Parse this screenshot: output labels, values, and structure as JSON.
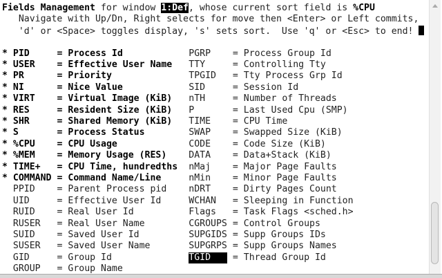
{
  "header": {
    "title": "Fields Management",
    "for_window": " for window ",
    "window_name": "1:Def",
    "sort_text": ", whose current sort field is ",
    "sort_field": "%CPU",
    "help_line1": "   Navigate with Up/Dn, Right selects for move then <Enter> or Left commits,",
    "help_line2": "   'd' or <Space> toggles display, 's' sets sort.  Use 'q' or <Esc> to end! "
  },
  "left_fields": [
    {
      "marker": "*",
      "name": "PID",
      "desc": "= Process Id",
      "displayed": true
    },
    {
      "marker": "*",
      "name": "USER",
      "desc": "= Effective User Name",
      "displayed": true
    },
    {
      "marker": "*",
      "name": "PR",
      "desc": "= Priority",
      "displayed": true
    },
    {
      "marker": "*",
      "name": "NI",
      "desc": "= Nice Value",
      "displayed": true
    },
    {
      "marker": "*",
      "name": "VIRT",
      "desc": "= Virtual Image (KiB)",
      "displayed": true
    },
    {
      "marker": "*",
      "name": "RES",
      "desc": "= Resident Size (KiB)",
      "displayed": true
    },
    {
      "marker": "*",
      "name": "SHR",
      "desc": "= Shared Memory (KiB)",
      "displayed": true
    },
    {
      "marker": "*",
      "name": "S",
      "desc": "= Process Status",
      "displayed": true
    },
    {
      "marker": "*",
      "name": "%CPU",
      "desc": "= CPU Usage",
      "displayed": true
    },
    {
      "marker": "*",
      "name": "%MEM",
      "desc": "= Memory Usage (RES)",
      "displayed": true
    },
    {
      "marker": "*",
      "name": "TIME+",
      "desc": "= CPU Time, hundredths",
      "displayed": true
    },
    {
      "marker": "*",
      "name": "COMMAND",
      "desc": "= Command Name/Line",
      "displayed": true
    },
    {
      "marker": "",
      "name": "PPID",
      "desc": "= Parent Process pid",
      "displayed": false
    },
    {
      "marker": "",
      "name": "UID",
      "desc": "= Effective User Id",
      "displayed": false
    },
    {
      "marker": "",
      "name": "RUID",
      "desc": "= Real User Id",
      "displayed": false
    },
    {
      "marker": "",
      "name": "RUSER",
      "desc": "= Real User Name",
      "displayed": false
    },
    {
      "marker": "",
      "name": "SUID",
      "desc": "= Saved User Id",
      "displayed": false
    },
    {
      "marker": "",
      "name": "SUSER",
      "desc": "= Saved User Name",
      "displayed": false
    },
    {
      "marker": "",
      "name": "GID",
      "desc": "= Group Id",
      "displayed": false
    },
    {
      "marker": "",
      "name": "GROUP",
      "desc": "= Group Name",
      "displayed": false
    }
  ],
  "right_fields": [
    {
      "name": "PGRP",
      "desc": "= Process Group Id",
      "selected": false
    },
    {
      "name": "TTY",
      "desc": "= Controlling Tty",
      "selected": false
    },
    {
      "name": "TPGID",
      "desc": "= Tty Process Grp Id",
      "selected": false
    },
    {
      "name": "SID",
      "desc": "= Session Id",
      "selected": false
    },
    {
      "name": "nTH",
      "desc": "= Number of Threads",
      "selected": false
    },
    {
      "name": "P",
      "desc": "= Last Used Cpu (SMP)",
      "selected": false
    },
    {
      "name": "TIME",
      "desc": "= CPU Time",
      "selected": false
    },
    {
      "name": "SWAP",
      "desc": "= Swapped Size (KiB)",
      "selected": false
    },
    {
      "name": "CODE",
      "desc": "= Code Size (KiB)",
      "selected": false
    },
    {
      "name": "DATA",
      "desc": "= Data+Stack (KiB)",
      "selected": false
    },
    {
      "name": "nMaj",
      "desc": "= Major Page Faults",
      "selected": false
    },
    {
      "name": "nMin",
      "desc": "= Minor Page Faults",
      "selected": false
    },
    {
      "name": "nDRT",
      "desc": "= Dirty Pages Count",
      "selected": false
    },
    {
      "name": "WCHAN",
      "desc": "= Sleeping in Function",
      "selected": false
    },
    {
      "name": "Flags",
      "desc": "= Task Flags <sched.h>",
      "selected": false
    },
    {
      "name": "CGROUPS",
      "desc": "= Control Groups",
      "selected": false
    },
    {
      "name": "SUPGIDS",
      "desc": "= Supp Groups IDs",
      "selected": false
    },
    {
      "name": "SUPGRPS",
      "desc": "= Supp Groups Names",
      "selected": false
    },
    {
      "name": "TGID",
      "desc": "= Thread Group Id",
      "selected": true
    }
  ]
}
